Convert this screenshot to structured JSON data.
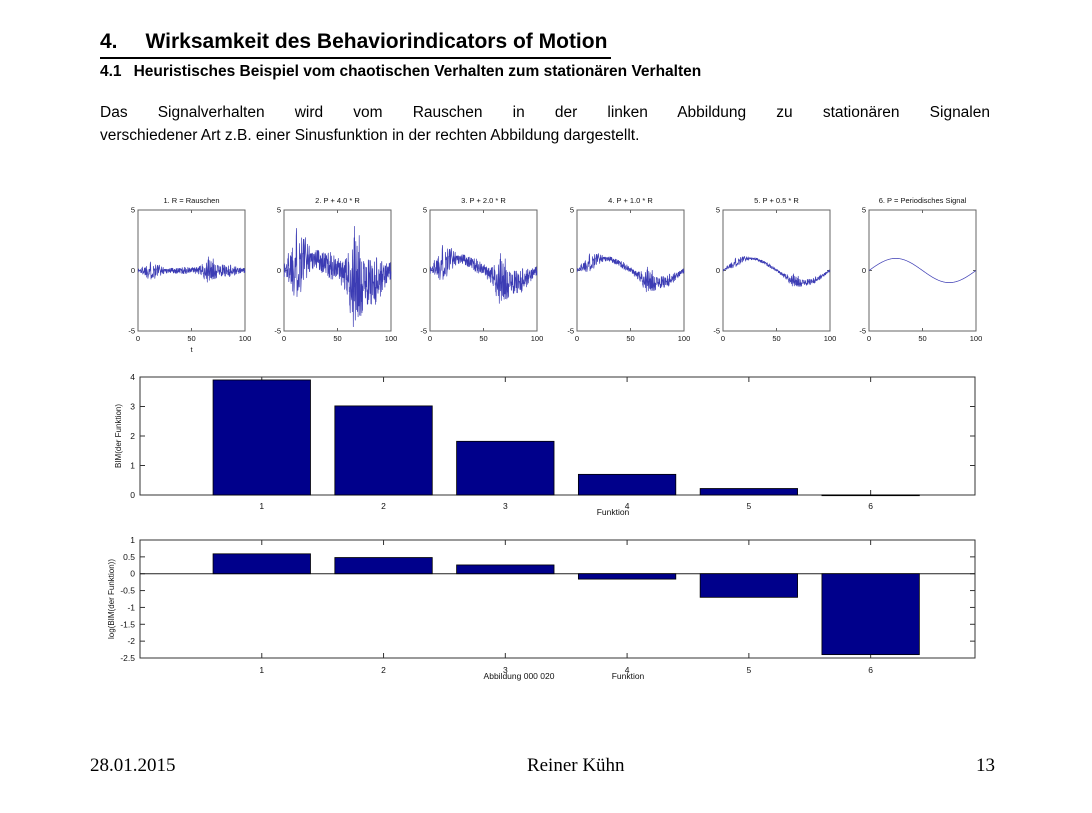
{
  "document": {
    "heading": {
      "number": "4.",
      "text": "Wirksamkeit des Behaviorindicators of Motion"
    },
    "subheading": {
      "number": "4.1",
      "text": "Heuristisches Beispiel vom chaotischen Verhalten zum stationären Verhalten"
    },
    "paragraph": {
      "line1": "Das Signalverhalten wird vom Rauschen in der linken Abbildung zu stationären Signalen",
      "line2": "verschiedener Art z.B. einer Sinusfunktion in der rechten Abbildung dargestellt."
    },
    "footer": {
      "date": "28.01.2015",
      "author": "Reiner Kühn",
      "page_number": "13"
    }
  },
  "colors": {
    "bar_fill": "#00008B",
    "bar_edge": "#000000",
    "signal_line": "#3C3CB4",
    "axis_frame": "#666666",
    "bar_axis_frame": "#333333",
    "label_text": "#111111"
  },
  "chart_data": [
    {
      "id": "signal-1",
      "type": "line",
      "title": "1. R = Rauschen",
      "xlabel": "t",
      "xlim": [
        0,
        100
      ],
      "ylim": [
        -5,
        5
      ],
      "xticks": [
        0,
        50,
        100
      ],
      "yticks": [
        -5,
        0,
        5
      ],
      "series": [
        {
          "name": "R",
          "description": "band-limited noise bursts, peak amplitude ~1",
          "sine_amplitude": 0,
          "noise_scale": 1
        }
      ],
      "line_color": "#3C3CB4"
    },
    {
      "id": "signal-2",
      "type": "line",
      "title": "2. P + 4.0 * R",
      "xlabel": "",
      "xlim": [
        0,
        100
      ],
      "ylim": [
        -5,
        5
      ],
      "xticks": [
        0,
        50,
        100
      ],
      "yticks": [
        -5,
        0,
        5
      ],
      "series": [
        {
          "name": "P + 4.0*R",
          "description": "sine (period 100, amplitude 1) plus 4x noise",
          "sine_amplitude": 1,
          "noise_scale": 4
        }
      ],
      "line_color": "#3C3CB4"
    },
    {
      "id": "signal-3",
      "type": "line",
      "title": "3. P + 2.0 * R",
      "xlabel": "",
      "xlim": [
        0,
        100
      ],
      "ylim": [
        -5,
        5
      ],
      "xticks": [
        0,
        50,
        100
      ],
      "yticks": [
        -5,
        0,
        5
      ],
      "series": [
        {
          "name": "P + 2.0*R",
          "description": "sine (period 100, amplitude 1) plus 2x noise",
          "sine_amplitude": 1,
          "noise_scale": 2
        }
      ],
      "line_color": "#3C3CB4"
    },
    {
      "id": "signal-4",
      "type": "line",
      "title": "4. P + 1.0 * R",
      "xlabel": "",
      "xlim": [
        0,
        100
      ],
      "ylim": [
        -5,
        5
      ],
      "xticks": [
        0,
        50,
        100
      ],
      "yticks": [
        -5,
        0,
        5
      ],
      "series": [
        {
          "name": "P + 1.0*R",
          "description": "sine (period 100, amplitude 1) plus 1x noise",
          "sine_amplitude": 1,
          "noise_scale": 1
        }
      ],
      "line_color": "#3C3CB4"
    },
    {
      "id": "signal-5",
      "type": "line",
      "title": "5. P + 0.5 * R",
      "xlabel": "",
      "xlim": [
        0,
        100
      ],
      "ylim": [
        -5,
        5
      ],
      "xticks": [
        0,
        50,
        100
      ],
      "yticks": [
        -5,
        0,
        5
      ],
      "series": [
        {
          "name": "P + 0.5*R",
          "description": "sine (period 100, amplitude 1) plus 0.5x noise",
          "sine_amplitude": 1,
          "noise_scale": 0.5
        }
      ],
      "line_color": "#3C3CB4"
    },
    {
      "id": "signal-6",
      "type": "line",
      "title": "6. P = Periodisches Signal",
      "xlabel": "",
      "xlim": [
        0,
        100
      ],
      "ylim": [
        -5,
        5
      ],
      "xticks": [
        0,
        50,
        100
      ],
      "yticks": [
        -5,
        0,
        5
      ],
      "series": [
        {
          "name": "P",
          "description": "pure sine, period 100, amplitude 1",
          "sine_amplitude": 1,
          "noise_scale": 0
        }
      ],
      "line_color": "#3C3CB4"
    },
    {
      "id": "bim-bar",
      "type": "bar",
      "categories": [
        "1",
        "2",
        "3",
        "4",
        "5",
        "6"
      ],
      "values": [
        3.9,
        3.02,
        1.82,
        0.7,
        0.22,
        0.004
      ],
      "ylabel": "BIM(der Funktion)",
      "xlabel": "Funktion",
      "ylim": [
        0,
        4
      ],
      "yticks": [
        0,
        1,
        2,
        3,
        4
      ],
      "bar_color": "#00008B",
      "legend": "none",
      "grid": false
    },
    {
      "id": "log-bim-bar",
      "type": "bar",
      "categories": [
        "1",
        "2",
        "3",
        "4",
        "5",
        "6"
      ],
      "values": [
        0.59,
        0.48,
        0.26,
        -0.16,
        -0.7,
        -2.4
      ],
      "ylabel": "log(BIM(der Funktion))",
      "xlabel": "Funktion",
      "caption": "Abbildung 000 020",
      "ylim": [
        -2.5,
        1
      ],
      "yticks": [
        1,
        0.5,
        0,
        -0.5,
        -1,
        -1.5,
        -2,
        -2.5
      ],
      "bar_color": "#00008B",
      "legend": "none",
      "grid": false
    }
  ]
}
